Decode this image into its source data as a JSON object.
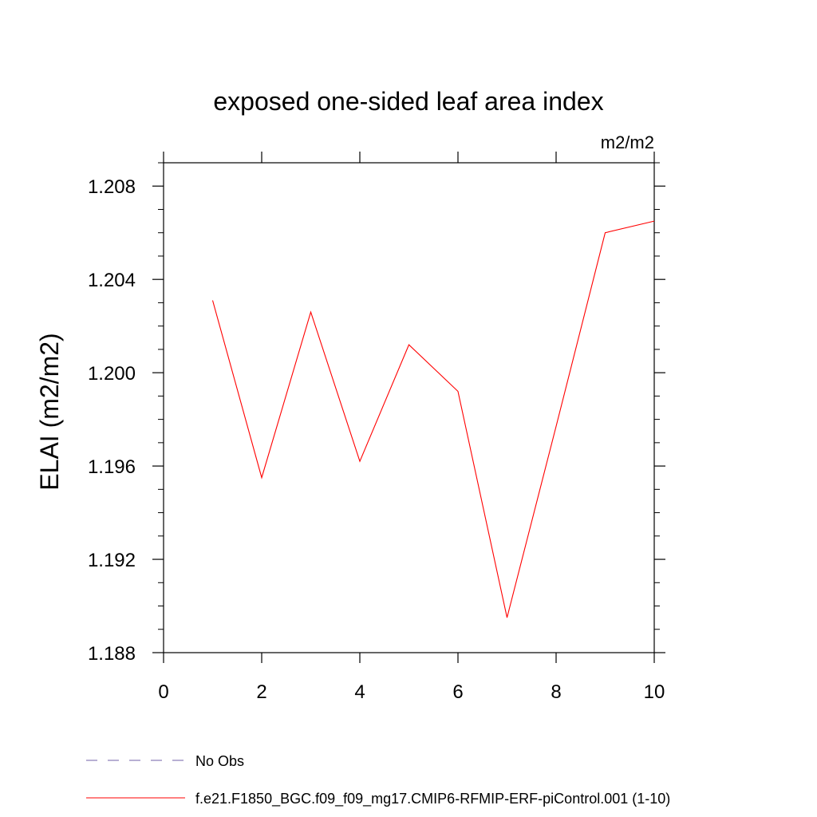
{
  "chart_data": {
    "type": "line",
    "title": "exposed one-sided leaf area index",
    "units": "m2/m2",
    "ylabel": "ELAI  (m2/m2)",
    "xlabel": "",
    "xlim": [
      0,
      10
    ],
    "ylim": [
      1.188,
      1.209
    ],
    "x_ticks": [
      0,
      2,
      4,
      6,
      8,
      10
    ],
    "x_tick_labels": [
      "0",
      "2",
      "4",
      "6",
      "8",
      "10"
    ],
    "y_ticks": [
      1.188,
      1.192,
      1.196,
      1.2,
      1.204,
      1.208
    ],
    "y_tick_labels": [
      "1.188",
      "1.192",
      "1.196",
      "1.200",
      "1.204",
      "1.208"
    ],
    "grid": false,
    "legend_position": "bottom",
    "series": [
      {
        "name": "f.e21.F1850_BGC.f09_f09_mg17.CMIP6-RFMIP-ERF-piControl.001 (1-10)",
        "color": "#ff0000",
        "dash": "solid",
        "x": [
          1,
          2,
          3,
          4,
          5,
          6,
          7,
          8,
          9,
          10
        ],
        "values": [
          1.2031,
          1.1955,
          1.2026,
          1.1962,
          1.2012,
          1.1992,
          1.1895,
          1.1977,
          1.206,
          1.2065
        ]
      }
    ],
    "legend": [
      {
        "label": "No Obs",
        "color": "#7060a8",
        "dash": "dashed"
      },
      {
        "label": "f.e21.F1850_BGC.f09_f09_mg17.CMIP6-RFMIP-ERF-piControl.001 (1-10)",
        "color": "#ff0000",
        "dash": "solid"
      }
    ]
  }
}
